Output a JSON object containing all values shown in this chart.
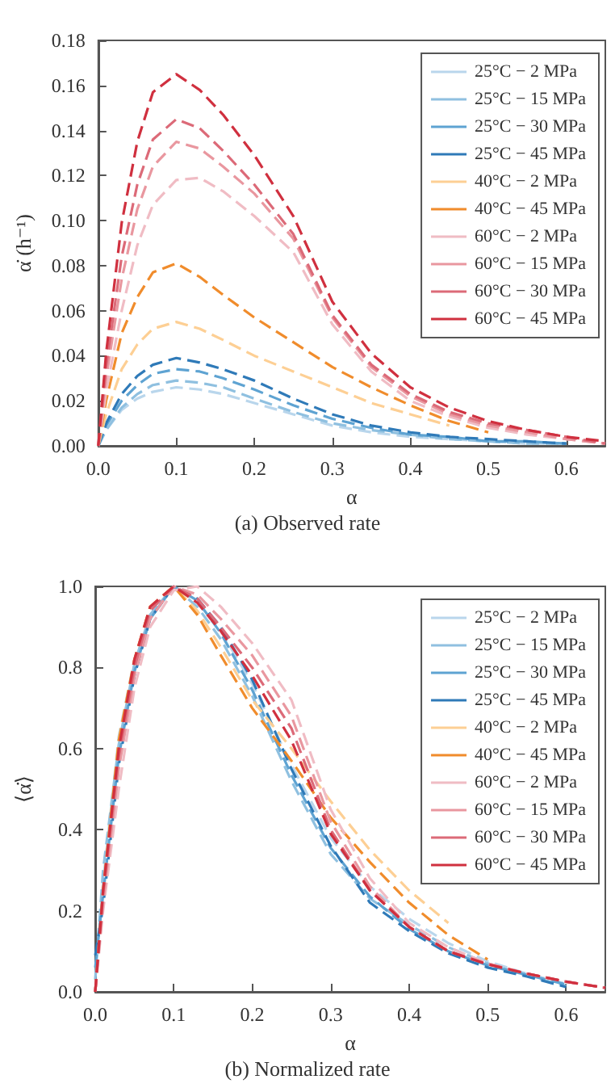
{
  "chart_data": [
    {
      "type": "line",
      "xlabel": "α",
      "ylabel": "α̇ (h⁻¹)",
      "annotations": [
        "(a) Observed rate"
      ],
      "x": [
        0,
        0.01,
        0.03,
        0.05,
        0.07,
        0.1,
        0.13,
        0.16,
        0.2,
        0.25,
        0.3,
        0.35,
        0.4,
        0.45,
        0.5,
        0.55,
        0.6,
        0.65
      ],
      "xlim": [
        0,
        0.65
      ],
      "ylim": [
        0,
        0.18
      ],
      "xticks": [
        {
          "value": 0,
          "label": "0.0"
        },
        0.1,
        0.2,
        0.3,
        0.4,
        0.5,
        0.6
      ],
      "yticks": [
        {
          "value": 0,
          "label": "0.00"
        },
        0.02,
        0.04,
        0.06,
        0.08,
        {
          "value": 0.1,
          "label": "0.10"
        },
        0.12,
        0.14,
        0.16,
        0.18
      ],
      "legend": "top right",
      "grid": false,
      "marker": "none",
      "line_style": "dashed",
      "series": [
        {
          "name": "25°C − 2 MPa",
          "color": "#b9d6ec",
          "values": [
            0,
            0.007,
            0.016,
            0.021,
            0.024,
            0.026,
            0.025,
            0.023,
            0.019,
            0.014,
            0.009,
            0.006,
            0.004,
            0.003,
            0.002,
            0.001,
            0.001,
            null
          ]
        },
        {
          "name": "25°C − 15 MPa",
          "color": "#8fc0e0",
          "values": [
            0,
            0.007,
            0.017,
            0.023,
            0.027,
            0.029,
            0.028,
            0.026,
            0.021,
            0.015,
            0.01,
            0.007,
            0.005,
            0.003,
            0.002,
            0.001,
            0.001,
            null
          ]
        },
        {
          "name": "25°C − 30 MPa",
          "color": "#5ea3d2",
          "values": [
            0,
            0.009,
            0.02,
            0.027,
            0.032,
            0.034,
            0.033,
            0.03,
            0.025,
            0.018,
            0.012,
            0.008,
            0.005,
            0.004,
            0.002,
            0.002,
            0.001,
            null
          ]
        },
        {
          "name": "25°C − 45 MPa",
          "color": "#2f7ab8",
          "values": [
            0,
            0.01,
            0.023,
            0.031,
            0.036,
            0.039,
            0.037,
            0.034,
            0.029,
            0.021,
            0.014,
            0.009,
            0.006,
            0.004,
            0.003,
            0.002,
            0.001,
            null
          ]
        },
        {
          "name": "40°C − 2 MPa",
          "color": "#fdcf94",
          "values": [
            0,
            0.014,
            0.034,
            0.045,
            0.052,
            0.055,
            0.052,
            0.047,
            0.04,
            0.033,
            0.026,
            0.019,
            0.014,
            0.009,
            null,
            null,
            null,
            null
          ]
        },
        {
          "name": "40°C − 45 MPa",
          "color": "#f08c2c",
          "values": [
            0,
            0.02,
            0.05,
            0.066,
            0.077,
            0.081,
            0.075,
            0.067,
            0.057,
            0.046,
            0.035,
            0.026,
            0.018,
            0.011,
            0.006,
            null,
            null,
            null
          ]
        },
        {
          "name": "60°C − 2 MPa",
          "color": "#f0bcc4",
          "values": [
            0,
            0.024,
            0.06,
            0.089,
            0.107,
            0.118,
            0.119,
            0.113,
            0.102,
            0.086,
            0.054,
            0.033,
            0.02,
            0.013,
            0.008,
            0.005,
            0.003,
            0.001
          ]
        },
        {
          "name": "60°C − 15 MPa",
          "color": "#e9979f",
          "values": [
            0,
            0.03,
            0.074,
            0.105,
            0.124,
            0.135,
            0.132,
            0.124,
            0.112,
            0.092,
            0.057,
            0.035,
            0.022,
            0.014,
            0.009,
            0.006,
            0.003,
            0.001
          ]
        },
        {
          "name": "60°C − 30 MPa",
          "color": "#dc6a78",
          "values": [
            0,
            0.035,
            0.084,
            0.116,
            0.136,
            0.145,
            0.141,
            0.131,
            0.116,
            0.094,
            0.058,
            0.036,
            0.023,
            0.015,
            0.01,
            0.007,
            0.004,
            0.001
          ]
        },
        {
          "name": "60°C − 45 MPa",
          "color": "#d0303f",
          "values": [
            0,
            0.041,
            0.099,
            0.135,
            0.157,
            0.165,
            0.158,
            0.147,
            0.129,
            0.102,
            0.064,
            0.041,
            0.026,
            0.017,
            0.011,
            0.007,
            0.004,
            0.002
          ]
        }
      ]
    },
    {
      "type": "line",
      "xlabel": "α",
      "ylabel": "⟨α̇⟩",
      "annotations": [
        "(b) Normalized rate"
      ],
      "x": [
        0,
        0.01,
        0.03,
        0.05,
        0.07,
        0.1,
        0.13,
        0.16,
        0.2,
        0.25,
        0.3,
        0.35,
        0.4,
        0.45,
        0.5,
        0.55,
        0.6,
        0.65
      ],
      "xlim": [
        0,
        0.65
      ],
      "ylim": [
        0,
        1
      ],
      "xticks": [
        {
          "value": 0,
          "label": "0.0"
        },
        0.1,
        0.2,
        0.3,
        0.4,
        0.5,
        0.6
      ],
      "yticks": [
        {
          "value": 0,
          "label": "0.0"
        },
        0.2,
        0.4,
        0.6,
        0.8,
        {
          "value": 1,
          "label": "1.0"
        }
      ],
      "legend": "top right",
      "grid": false,
      "marker": "none",
      "line_style": "dashed",
      "series": [
        {
          "name": "25°C − 2 MPa",
          "color": "#b9d6ec",
          "values": [
            0,
            0.27,
            0.63,
            0.82,
            0.94,
            1.0,
            0.96,
            0.89,
            0.76,
            0.56,
            0.38,
            0.26,
            0.18,
            0.12,
            0.075,
            0.045,
            0.02,
            null
          ]
        },
        {
          "name": "25°C − 15 MPa",
          "color": "#8fc0e0",
          "values": [
            0.03,
            0.3,
            0.61,
            0.81,
            0.93,
            1.0,
            0.95,
            0.87,
            0.73,
            0.52,
            0.34,
            0.23,
            0.165,
            0.11,
            0.07,
            0.04,
            0.015,
            null
          ]
        },
        {
          "name": "25°C − 30 MPa",
          "color": "#5ea3d2",
          "values": [
            0.06,
            0.24,
            0.58,
            0.79,
            0.92,
            1.0,
            0.965,
            0.885,
            0.745,
            0.535,
            0.355,
            0.235,
            0.155,
            0.1,
            0.065,
            0.042,
            0.018,
            null
          ]
        },
        {
          "name": "25°C − 45 MPa",
          "color": "#2f7ab8",
          "values": [
            0.09,
            0.21,
            0.56,
            0.78,
            0.92,
            1.0,
            0.97,
            0.9,
            0.77,
            0.55,
            0.36,
            0.22,
            0.15,
            0.095,
            0.06,
            0.038,
            0.012,
            null
          ]
        },
        {
          "name": "40°C − 2 MPa",
          "color": "#fdcf94",
          "values": [
            0,
            0.25,
            0.62,
            0.82,
            0.95,
            1.0,
            0.94,
            0.85,
            0.72,
            0.6,
            0.47,
            0.35,
            0.25,
            0.17,
            null,
            null,
            null,
            null
          ]
        },
        {
          "name": "40°C − 45 MPa",
          "color": "#f08c2c",
          "values": [
            0,
            0.25,
            0.62,
            0.82,
            0.95,
            1.0,
            0.93,
            0.83,
            0.7,
            0.57,
            0.43,
            0.32,
            0.22,
            0.14,
            0.08,
            null,
            null,
            null
          ]
        },
        {
          "name": "60°C − 2 MPa",
          "color": "#f0bcc4",
          "values": [
            0,
            0.2,
            0.5,
            0.75,
            0.9,
            0.99,
            1.0,
            0.95,
            0.86,
            0.72,
            0.45,
            0.28,
            0.17,
            0.11,
            0.07,
            0.045,
            0.025,
            0.01
          ]
        },
        {
          "name": "60°C − 15 MPa",
          "color": "#e9979f",
          "values": [
            0,
            0.22,
            0.55,
            0.78,
            0.92,
            1.0,
            0.98,
            0.92,
            0.83,
            0.68,
            0.42,
            0.26,
            0.16,
            0.1,
            0.07,
            0.045,
            0.025,
            0.01
          ]
        },
        {
          "name": "60°C − 30 MPa",
          "color": "#dc6a78",
          "values": [
            0,
            0.24,
            0.58,
            0.8,
            0.94,
            1.0,
            0.97,
            0.9,
            0.8,
            0.65,
            0.4,
            0.25,
            0.16,
            0.1,
            0.068,
            0.045,
            0.025,
            0.01
          ]
        },
        {
          "name": "60°C − 45 MPa",
          "color": "#d0303f",
          "values": [
            0,
            0.25,
            0.6,
            0.82,
            0.95,
            1.0,
            0.96,
            0.89,
            0.78,
            0.62,
            0.39,
            0.25,
            0.16,
            0.1,
            0.068,
            0.045,
            0.025,
            0.01
          ]
        }
      ]
    }
  ]
}
